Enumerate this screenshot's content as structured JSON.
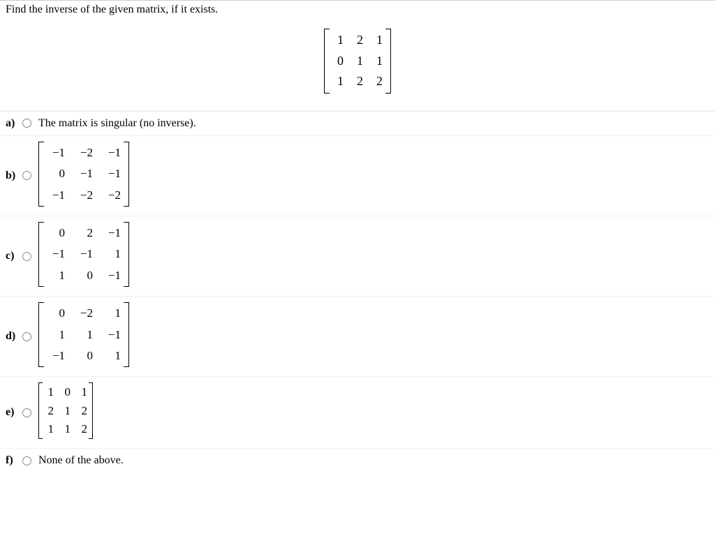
{
  "question": {
    "prompt": "Find the inverse of the given matrix, if it exists.",
    "matrix": {
      "rows": 3,
      "cols": 3,
      "cells": [
        "1",
        "2",
        "1",
        "0",
        "1",
        "1",
        "1",
        "2",
        "2"
      ],
      "col_gap": 12,
      "row_gap": 8,
      "cell_min_width": 16,
      "font_size": 18
    }
  },
  "options": {
    "a": {
      "label": "a)",
      "type": "text",
      "text": "The matrix is singular (no inverse)."
    },
    "b": {
      "label": "b)",
      "type": "matrix",
      "matrix": {
        "rows": 3,
        "cols": 3,
        "cells": [
          "−1",
          "−2",
          "−1",
          "0",
          "−1",
          "−1",
          "−1",
          "−2",
          "−2"
        ],
        "col_gap": 14,
        "row_gap": 10,
        "cell_min_width": 26,
        "font_size": 17
      }
    },
    "c": {
      "label": "c)",
      "type": "matrix",
      "matrix": {
        "rows": 3,
        "cols": 3,
        "cells": [
          "0",
          "2",
          "−1",
          "−1",
          "−1",
          "1",
          "1",
          "0",
          "−1"
        ],
        "col_gap": 14,
        "row_gap": 10,
        "cell_min_width": 26,
        "font_size": 17
      }
    },
    "d": {
      "label": "d)",
      "type": "matrix",
      "matrix": {
        "rows": 3,
        "cols": 3,
        "cells": [
          "0",
          "−2",
          "1",
          "1",
          "1",
          "−1",
          "−1",
          "0",
          "1"
        ],
        "col_gap": 14,
        "row_gap": 10,
        "cell_min_width": 26,
        "font_size": 17
      }
    },
    "e": {
      "label": "e)",
      "type": "matrix",
      "matrix": {
        "rows": 3,
        "cols": 3,
        "cells": [
          "1",
          "0",
          "1",
          "2",
          "1",
          "2",
          "1",
          "1",
          "2"
        ],
        "col_gap": 10,
        "row_gap": 6,
        "cell_min_width": 14,
        "font_size": 17
      }
    },
    "f": {
      "label": "f)",
      "type": "text",
      "text": "None of the above."
    }
  },
  "style": {
    "border_color": "#eeeeee",
    "text_color": "#000000",
    "background_color": "#ffffff",
    "font_family": "Times New Roman"
  }
}
